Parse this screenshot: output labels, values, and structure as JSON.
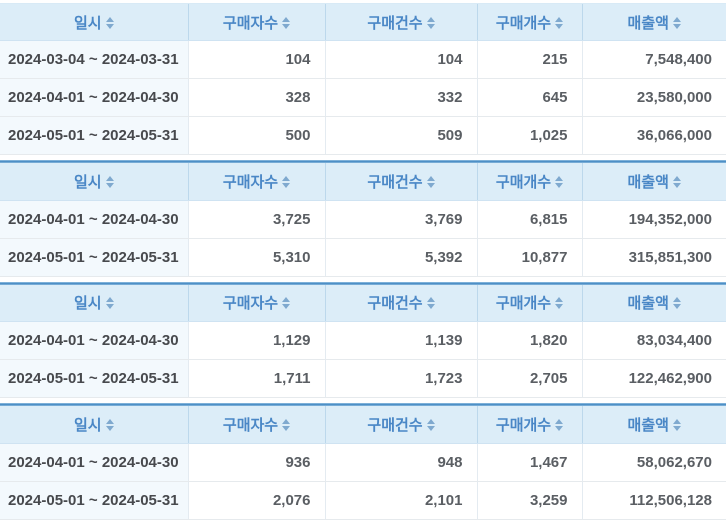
{
  "header": {
    "columns": [
      {
        "label": "일시",
        "icon": "sort-icon"
      },
      {
        "label": "구매자수",
        "icon": "sort-icon"
      },
      {
        "label": "구매건수",
        "icon": "sort-icon"
      },
      {
        "label": "구매개수",
        "icon": "sort-icon"
      },
      {
        "label": "매출액",
        "icon": "sort-icon"
      }
    ]
  },
  "tables": [
    {
      "rows": [
        {
          "period": "2024-03-04 ~ 2024-03-31",
          "buyers": "104",
          "orders": "104",
          "items": "215",
          "revenue": "7,548,400"
        },
        {
          "period": "2024-04-01 ~ 2024-04-30",
          "buyers": "328",
          "orders": "332",
          "items": "645",
          "revenue": "23,580,000"
        },
        {
          "period": "2024-05-01 ~ 2024-05-31",
          "buyers": "500",
          "orders": "509",
          "items": "1,025",
          "revenue": "36,066,000"
        }
      ]
    },
    {
      "rows": [
        {
          "period": "2024-04-01 ~ 2024-04-30",
          "buyers": "3,725",
          "orders": "3,769",
          "items": "6,815",
          "revenue": "194,352,000"
        },
        {
          "period": "2024-05-01 ~ 2024-05-31",
          "buyers": "5,310",
          "orders": "5,392",
          "items": "10,877",
          "revenue": "315,851,300"
        }
      ]
    },
    {
      "rows": [
        {
          "period": "2024-04-01 ~ 2024-04-30",
          "buyers": "1,129",
          "orders": "1,139",
          "items": "1,820",
          "revenue": "83,034,400"
        },
        {
          "period": "2024-05-01 ~ 2024-05-31",
          "buyers": "1,711",
          "orders": "1,723",
          "items": "2,705",
          "revenue": "122,462,900"
        }
      ]
    },
    {
      "rows": [
        {
          "period": "2024-04-01 ~ 2024-04-30",
          "buyers": "936",
          "orders": "948",
          "items": "1,467",
          "revenue": "58,062,670"
        },
        {
          "period": "2024-05-01 ~ 2024-05-31",
          "buyers": "2,076",
          "orders": "2,101",
          "items": "3,259",
          "revenue": "112,506,128"
        }
      ]
    }
  ],
  "colors": {
    "header_bg": "#dcedf8",
    "header_text": "#4a87c6",
    "sort_icon": "#7fa9cf",
    "table_top_border": "#4d8fc6",
    "date_cell_bg": "#f3f9fd",
    "data_text": "#5a5e63",
    "row_border": "#e6eaed"
  }
}
